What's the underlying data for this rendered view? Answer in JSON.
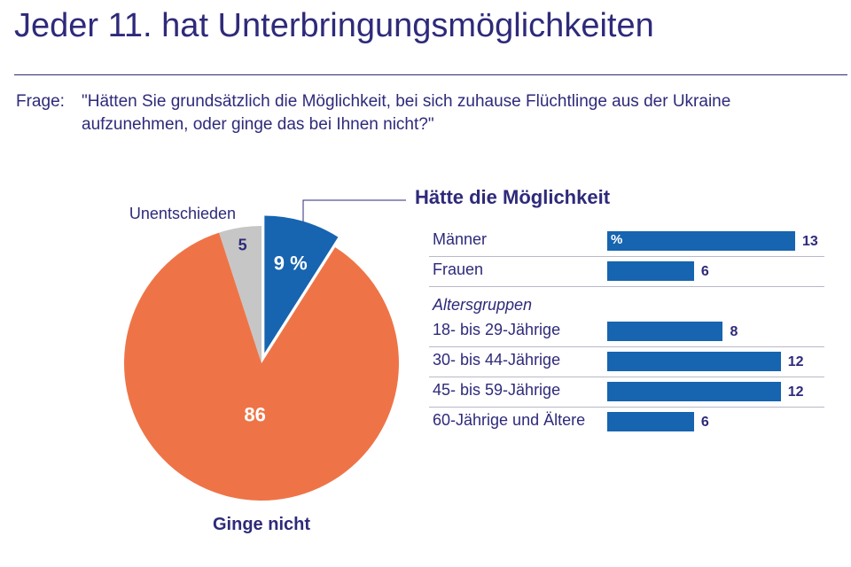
{
  "title": "Jeder 11. hat Unterbringungsmöglichkeiten",
  "question": {
    "prefix": "Frage:",
    "line1": "\"Hätten Sie grundsätzlich die Möglichkeit, bei sich zuhause Flüchtlinge aus der Ukraine",
    "line2": "aufzunehmen, oder ginge das bei Ihnen nicht?\""
  },
  "chart_data": [
    {
      "type": "pie",
      "slices": [
        {
          "label": "Hätte die Möglichkeit",
          "value": 9,
          "value_text": "9 %",
          "color": "#1764b0"
        },
        {
          "label": "Ginge nicht",
          "value": 86,
          "value_text": "86",
          "color": "#ee7447"
        },
        {
          "label": "Unentschieden",
          "value": 5,
          "value_text": "5",
          "color": "#c6c6c6"
        }
      ]
    },
    {
      "type": "bar",
      "title": "Hätte die Möglichkeit",
      "unit": "%",
      "bar_color": "#1764b0",
      "group_label": "Altersgruppen",
      "xlim": [
        0,
        13
      ],
      "categories": [
        "Männer",
        "Frauen",
        "18- bis 29-Jährige",
        "30- bis 44-Jährige",
        "45- bis 59-Jährige",
        "60-Jährige und Ältere"
      ],
      "values": [
        13,
        6,
        8,
        12,
        12,
        6
      ]
    }
  ]
}
